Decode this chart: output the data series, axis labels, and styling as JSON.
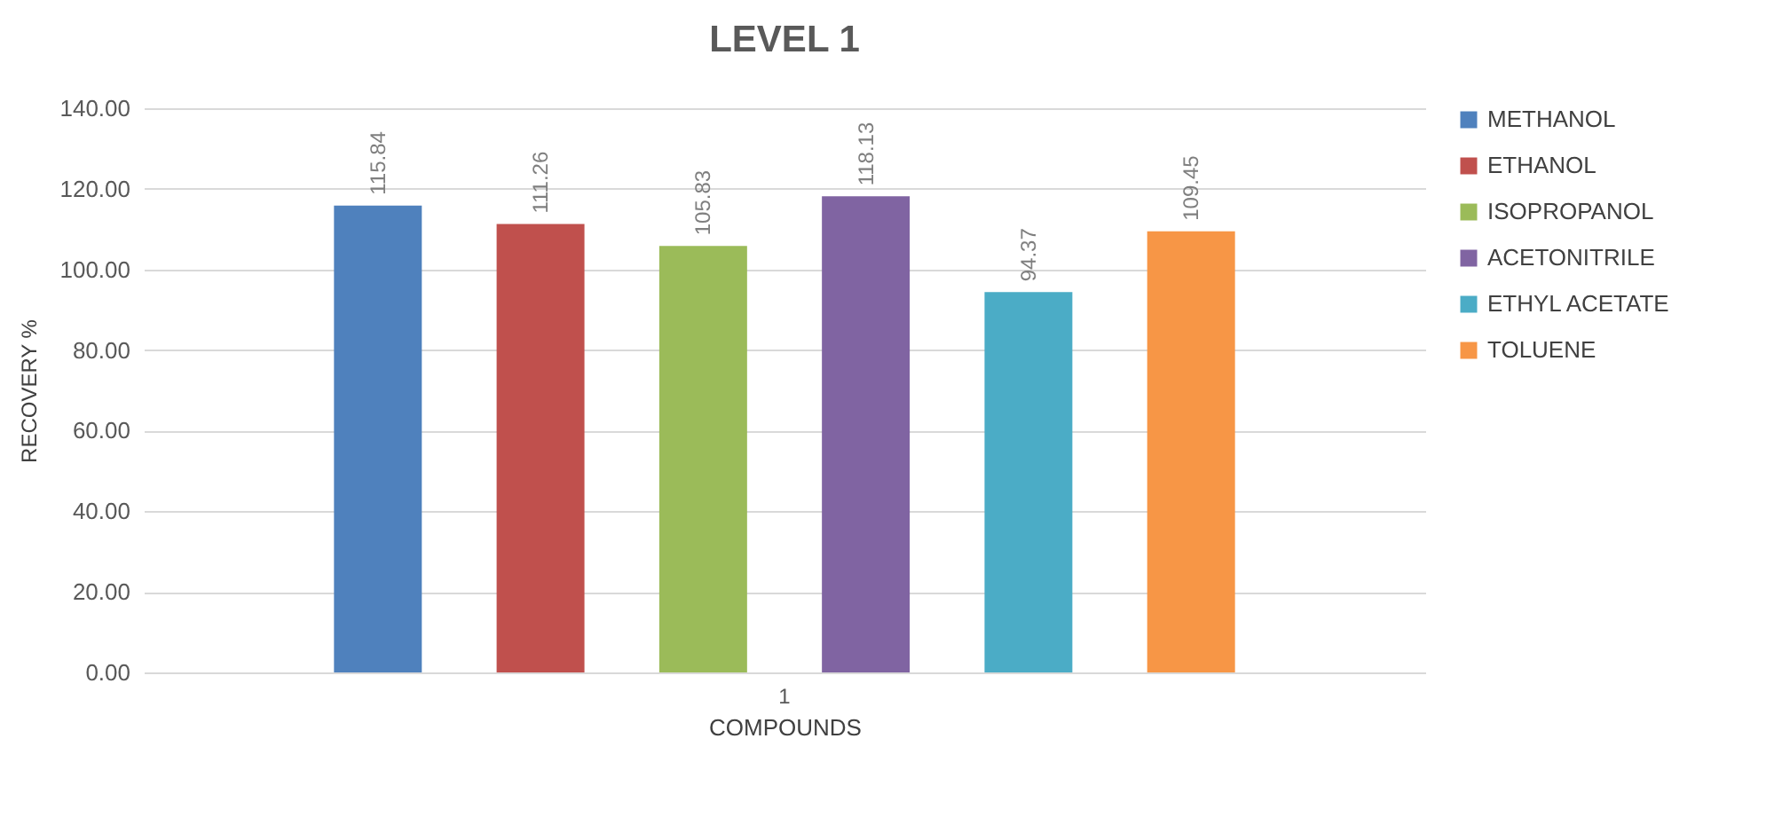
{
  "chart_data": {
    "type": "bar",
    "title": "LEVEL 1",
    "xlabel": "COMPOUNDS",
    "ylabel": "RECOVERY %",
    "categories": [
      "1"
    ],
    "series": [
      {
        "name": "METHANOL",
        "color": "#4f81bd",
        "values": [
          115.84
        ]
      },
      {
        "name": "ETHANOL",
        "color": "#c0504d",
        "values": [
          111.26
        ]
      },
      {
        "name": "ISOPROPANOL",
        "color": "#9bbb59",
        "values": [
          105.83
        ]
      },
      {
        "name": "ACETONITRILE",
        "color": "#8064a2",
        "values": [
          118.13
        ]
      },
      {
        "name": "ETHYL ACETATE",
        "color": "#4bacc6",
        "values": [
          94.37
        ]
      },
      {
        "name": "TOLUENE",
        "color": "#f79646",
        "values": [
          109.45
        ]
      }
    ],
    "ylim": [
      0,
      140
    ],
    "yticks": [
      {
        "value": 0,
        "label": "0.00"
      },
      {
        "value": 20,
        "label": "20.00"
      },
      {
        "value": 40,
        "label": "40.00"
      },
      {
        "value": 60,
        "label": "60.00"
      },
      {
        "value": 80,
        "label": "80.00"
      },
      {
        "value": 100,
        "label": "100.00"
      },
      {
        "value": 120,
        "label": "120.00"
      },
      {
        "value": 140,
        "label": "140.00"
      }
    ],
    "grid": "y",
    "legend": "right",
    "data_labels": true
  }
}
